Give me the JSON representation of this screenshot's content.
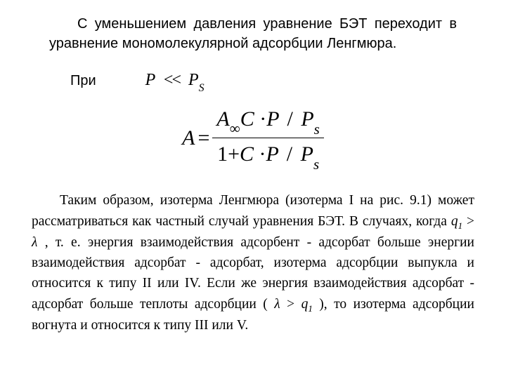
{
  "intro": {
    "text": "С уменьшением давления уравнение БЭТ переходит в уравнение мономолекулярной адсорбции Ленгмюра."
  },
  "condition": {
    "label": "При",
    "lhs_var": "P",
    "rel": "<<",
    "rhs_var": "P",
    "rhs_sub": "S"
  },
  "equation": {
    "lhs": "A",
    "eq": "=",
    "num": {
      "A": "A",
      "Asub": "∞",
      "C": "C",
      "P1": "P",
      "slash": "/",
      "P2": "P",
      "P2sub": "s"
    },
    "den": {
      "one": "1",
      "plus": "+",
      "C": "C",
      "P1": "P",
      "slash": "/",
      "P2": "P",
      "P2sub": "s"
    }
  },
  "body": {
    "t1": "Таким образом, изотерма Ленгмюра (изотерма I на рис. 9.1) может рассматриваться как частный случай уравнения БЭТ. В случаях, когда ",
    "q1_var": "q",
    "q1_sub": "1",
    "gt1": " > ",
    "lam1": "λ",
    "t2": " ,  т. е. энергия взаимодействия адсорбент - адсорбат  больше энергии взаимодействия  адсорбат - адсорбат,  изотерма адсорбции выпукла и относится к типу  II  или  IV.  Если же энергия взаимодействия адсорбат - адсорбат больше теплоты адсорбции ( ",
    "lam2": "λ",
    "gt2": "  >  ",
    "q2_var": "q",
    "q2_sub": "1",
    "t3": " ),  то изотерма адсорбции вогнута и относится к типу  III  или  V."
  }
}
